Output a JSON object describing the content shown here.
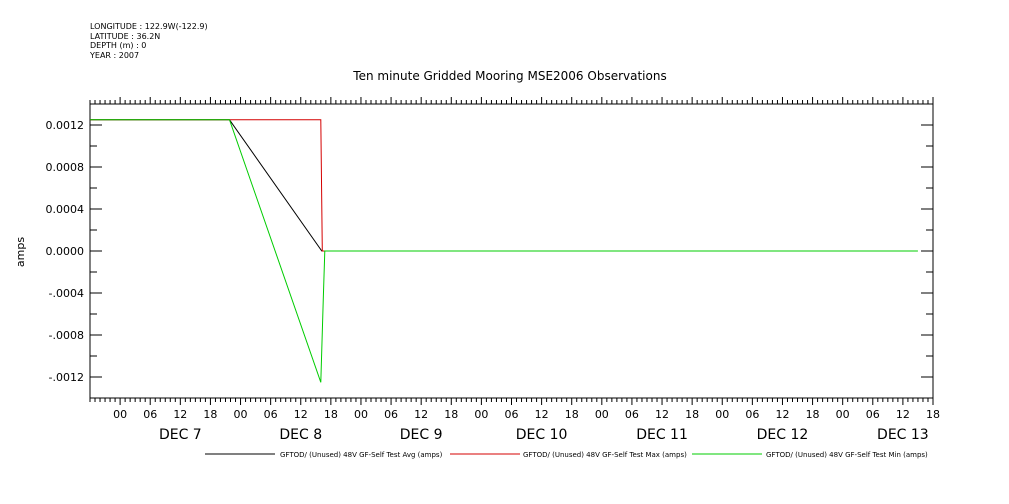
{
  "meta": {
    "longitude": "LONGITUDE : 122.9W(-122.9)",
    "latitude": "LATITUDE : 36.2N",
    "depth": "DEPTH (m) : 0",
    "year": "YEAR : 2007"
  },
  "chart_data": {
    "type": "line",
    "title": "Ten minute Gridded Mooring MSE2006 Observations",
    "ylabel": "amps",
    "xlabel": "",
    "ylim": [
      -0.0014,
      0.0014
    ],
    "yticks": [
      0.0012,
      0.0008,
      0.0004,
      0.0,
      -0.0004,
      -0.0008,
      -0.0012
    ],
    "ytick_labels": [
      "0.0012",
      "0.0008",
      "0.0004",
      "0.0000",
      "-.0004",
      "-.0008",
      "-.0012"
    ],
    "x_unit": "hours from DEC 7 00:00 (2007)",
    "xlim": [
      -6,
      162
    ],
    "hour_ticks": [
      {
        "h": 0,
        "label": "00"
      },
      {
        "h": 6,
        "label": "06"
      },
      {
        "h": 12,
        "label": "12"
      },
      {
        "h": 18,
        "label": "18"
      },
      {
        "h": 24,
        "label": "00"
      },
      {
        "h": 30,
        "label": "06"
      },
      {
        "h": 36,
        "label": "12"
      },
      {
        "h": 42,
        "label": "18"
      },
      {
        "h": 48,
        "label": "00"
      },
      {
        "h": 54,
        "label": "06"
      },
      {
        "h": 60,
        "label": "12"
      },
      {
        "h": 66,
        "label": "18"
      },
      {
        "h": 72,
        "label": "00"
      },
      {
        "h": 78,
        "label": "06"
      },
      {
        "h": 84,
        "label": "12"
      },
      {
        "h": 90,
        "label": "18"
      },
      {
        "h": 96,
        "label": "00"
      },
      {
        "h": 102,
        "label": "06"
      },
      {
        "h": 108,
        "label": "12"
      },
      {
        "h": 114,
        "label": "18"
      },
      {
        "h": 120,
        "label": "00"
      },
      {
        "h": 126,
        "label": "06"
      },
      {
        "h": 132,
        "label": "12"
      },
      {
        "h": 138,
        "label": "18"
      },
      {
        "h": 144,
        "label": "00"
      },
      {
        "h": 150,
        "label": "06"
      },
      {
        "h": 156,
        "label": "12"
      },
      {
        "h": 162,
        "label": "18"
      }
    ],
    "day_labels": [
      {
        "h": 12,
        "label": "DEC  7"
      },
      {
        "h": 36,
        "label": "DEC  8"
      },
      {
        "h": 60,
        "label": "DEC  9"
      },
      {
        "h": 84,
        "label": "DEC 10"
      },
      {
        "h": 108,
        "label": "DEC 11"
      },
      {
        "h": 132,
        "label": "DEC 12"
      },
      {
        "h": 156,
        "label": "DEC 13"
      }
    ],
    "series": [
      {
        "name": "GFTOD/ (Unused) 48V GF-Self Test Avg (amps)",
        "color": "#000000",
        "x": [
          -6,
          21.8,
          40.2,
          40.6,
          50.0
        ],
        "y": [
          0.00125,
          0.00125,
          0.0,
          0.0,
          0.0
        ]
      },
      {
        "name": "GFTOD/ (Unused) 48V GF-Self Test Max (amps)",
        "color": "#d40000",
        "x": [
          -6,
          40.0,
          40.3,
          40.6,
          50.0
        ],
        "y": [
          0.00125,
          0.00125,
          0.0,
          0.0,
          0.0
        ]
      },
      {
        "name": "GFTOD/ (Unused) 48V GF-Self Test Min (amps)",
        "color": "#00cc00",
        "x": [
          -6,
          21.8,
          40.0,
          40.5,
          40.8,
          159.0
        ],
        "y": [
          0.00125,
          0.00125,
          -0.00125,
          -0.00045,
          0.0,
          0.0
        ]
      }
    ],
    "legend_position": "bottom",
    "grid": false
  }
}
